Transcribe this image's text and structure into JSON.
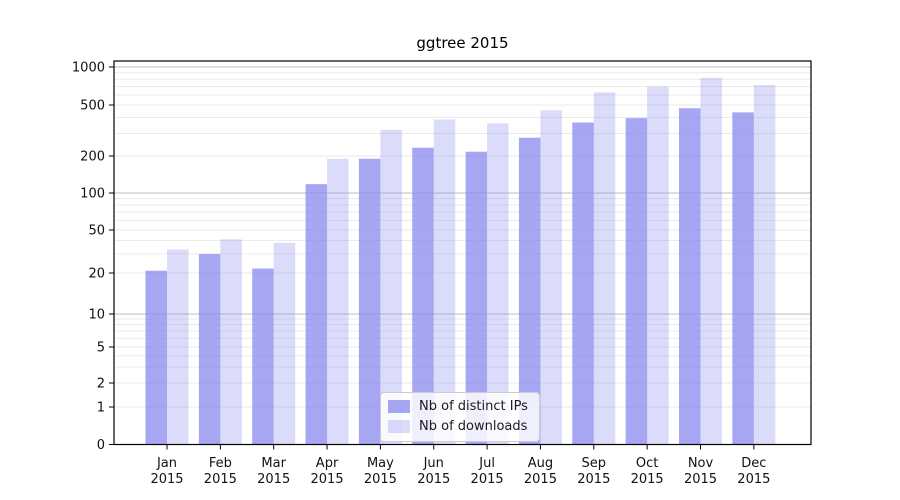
{
  "chart_data": {
    "type": "bar",
    "title": "ggtree 2015",
    "categories": [
      "Jan",
      "Feb",
      "Mar",
      "Apr",
      "May",
      "Jun",
      "Jul",
      "Aug",
      "Sep",
      "Oct",
      "Nov",
      "Dec"
    ],
    "x_year_label": "2015",
    "series": [
      {
        "name": "Nb of distinct IPs",
        "color": "rgba(136,136,238,0.75)",
        "values": [
          21,
          30,
          22,
          118,
          190,
          232,
          216,
          278,
          365,
          395,
          472,
          438
        ]
      },
      {
        "name": "Nb of downloads",
        "color": "rgba(136,136,238,0.3)",
        "values": [
          33,
          41,
          38,
          190,
          320,
          385,
          360,
          455,
          630,
          700,
          820,
          720
        ]
      }
    ],
    "y_ticks": [
      0,
      1,
      2,
      5,
      10,
      20,
      50,
      100,
      200,
      500,
      1000
    ],
    "yscale": "symlog",
    "ylim": [
      0,
      1100
    ],
    "grid": "both",
    "legend_position": "lower-center",
    "colors": {
      "bar_base": "#8888ee",
      "grid_minor": "#e8e8e8",
      "grid_major": "#bdbdbd",
      "spine": "#000000"
    }
  },
  "legend": {
    "items": [
      {
        "label": "Nb of distinct IPs"
      },
      {
        "label": "Nb of downloads"
      }
    ]
  }
}
